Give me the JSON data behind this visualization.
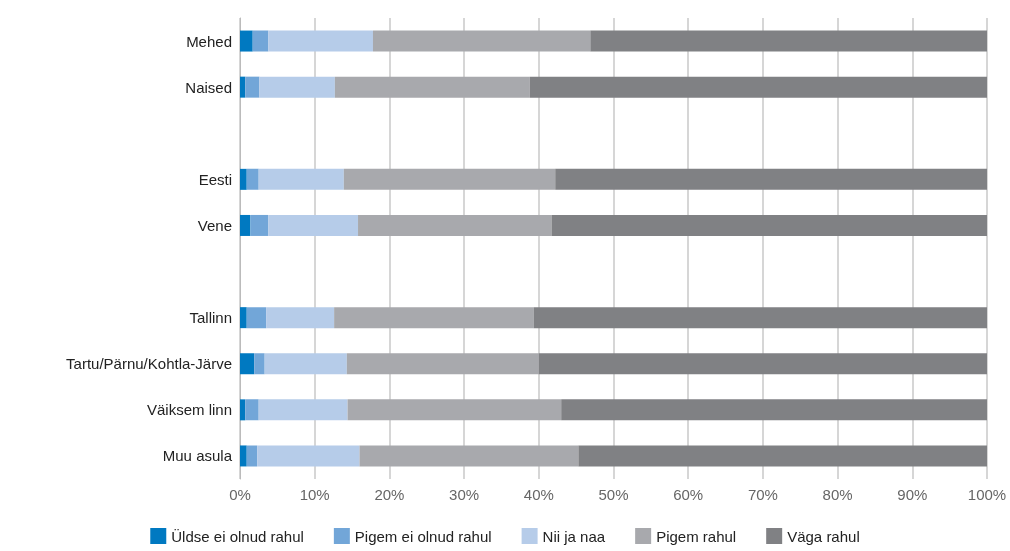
{
  "chart_data": {
    "type": "bar",
    "orientation": "horizontal",
    "stacked": true,
    "categories": [
      "Mehed",
      "Naised",
      null,
      "Eesti",
      "Vene",
      null,
      "Tallinn",
      "Tartu/Pärnu/Kohtla-Järve",
      "Väiksem linn",
      "Muu asula"
    ],
    "series": [
      {
        "name": "Üldse ei olnud rahul",
        "color": "#0079c1",
        "values": [
          1.7,
          0.7,
          null,
          0.9,
          1.4,
          null,
          0.9,
          1.9,
          0.7,
          0.9
        ]
      },
      {
        "name": "Pigem ei olnud rahul",
        "color": "#72a6d8",
        "values": [
          2.1,
          1.9,
          null,
          1.6,
          2.4,
          null,
          2.6,
          1.4,
          1.8,
          1.4
        ]
      },
      {
        "name": "Nii ja naa",
        "color": "#b6cce9",
        "values": [
          14.0,
          10.1,
          null,
          11.4,
          12.0,
          null,
          9.1,
          11.0,
          11.9,
          13.7
        ]
      },
      {
        "name": "Pigem rahul",
        "color": "#a8a9ad",
        "values": [
          29.1,
          26.1,
          null,
          28.3,
          25.9,
          null,
          26.7,
          25.7,
          28.6,
          29.3
        ]
      },
      {
        "name": "Väga rahul",
        "color": "#808184",
        "values": [
          53.1,
          61.2,
          null,
          57.8,
          58.3,
          null,
          60.7,
          60.0,
          57.0,
          54.7
        ]
      }
    ],
    "xlim": [
      0,
      100
    ],
    "xticks": [
      {
        "value": 0,
        "label": "0%"
      },
      {
        "value": 10,
        "label": "10%"
      },
      {
        "value": 20,
        "label": "20%"
      },
      {
        "value": 30,
        "label": "30%"
      },
      {
        "value": 40,
        "label": "40%"
      },
      {
        "value": 50,
        "label": "50%"
      },
      {
        "value": 60,
        "label": "60%"
      },
      {
        "value": 70,
        "label": "70%"
      },
      {
        "value": 80,
        "label": "80%"
      },
      {
        "value": 90,
        "label": "90%"
      },
      {
        "value": 100,
        "label": "100%"
      }
    ],
    "grid": "x",
    "legend": "bottom"
  }
}
